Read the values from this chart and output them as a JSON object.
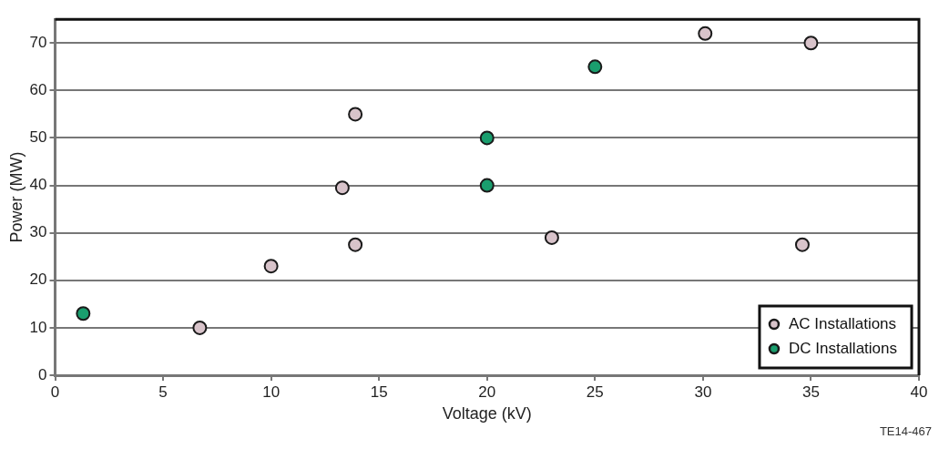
{
  "chart_data": {
    "type": "scatter",
    "xlabel": "Voltage (kV)",
    "ylabel": "Power (MW)",
    "series": [
      {
        "name": "AC Installations",
        "color": "#d8c3ca",
        "x": [
          6.7,
          10,
          13.3,
          13.9,
          13.9,
          23,
          30.1,
          35,
          34.6
        ],
        "values": [
          10,
          23,
          39.5,
          27.5,
          55,
          29,
          72,
          70,
          27.5
        ]
      },
      {
        "name": "DC Installations",
        "color": "#1a9e6e",
        "x": [
          1.3,
          20,
          20,
          25
        ],
        "values": [
          13,
          50,
          40,
          65
        ]
      }
    ],
    "xlim": [
      0,
      40
    ],
    "xticks": [
      0,
      5,
      10,
      15,
      20,
      25,
      30,
      35,
      40
    ],
    "ylim": [
      0,
      75
    ],
    "yticks": [
      0,
      10,
      20,
      30,
      40,
      50,
      60,
      70
    ],
    "grid": "y",
    "legend": "bottom right",
    "marker": "circle",
    "annotations": [
      "TE14-467"
    ]
  }
}
